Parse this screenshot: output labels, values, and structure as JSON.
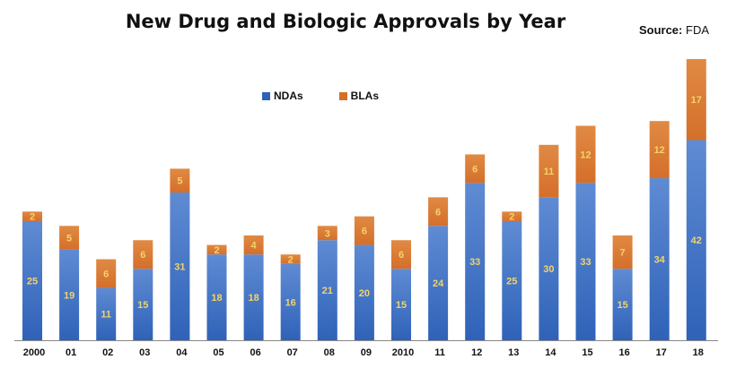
{
  "colors": {
    "nda": "#2f62b8",
    "nda_light": "#5f8bd3",
    "bla": "#d46f2a",
    "bla_light": "#e08a44",
    "label": "#f3d36b",
    "axis": "#888888"
  },
  "chart_data": {
    "type": "bar",
    "stacked": true,
    "title": "New Drug and Biologic Approvals by Year",
    "source_label": "Source:",
    "source_value": "FDA",
    "categories": [
      "2000",
      "01",
      "02",
      "03",
      "04",
      "05",
      "06",
      "07",
      "08",
      "09",
      "2010",
      "11",
      "12",
      "13",
      "14",
      "15",
      "16",
      "17",
      "18"
    ],
    "series": [
      {
        "name": "NDAs",
        "values": [
          25,
          19,
          11,
          15,
          31,
          18,
          18,
          16,
          21,
          20,
          15,
          24,
          33,
          25,
          30,
          33,
          15,
          34,
          42
        ]
      },
      {
        "name": "BLAs",
        "values": [
          2,
          5,
          6,
          6,
          5,
          2,
          4,
          2,
          3,
          6,
          6,
          6,
          6,
          2,
          11,
          12,
          7,
          12,
          17
        ]
      }
    ],
    "ylim": [
      0,
      59
    ],
    "grid": false,
    "legend_position": "top-left"
  }
}
